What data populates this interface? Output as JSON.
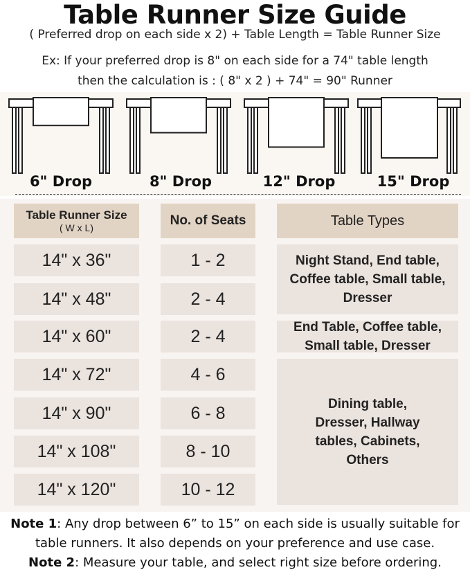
{
  "title": "Table Runner Size Guide",
  "formula": "( Preferred drop on each side x 2) + Table Length = Table Runner Size",
  "example_line1": "Ex: If your preferred drop is 8\" on each side for a 74\" table length",
  "example_line2": "then the calculation is : ( 8\" x 2 ) + 74\" = 90\" Runner",
  "drops": [
    {
      "label": "6\" Drop",
      "inches": 6
    },
    {
      "label": "8\" Drop",
      "inches": 8
    },
    {
      "label": "12\" Drop",
      "inches": 12
    },
    {
      "label": "15\" Drop",
      "inches": 15
    }
  ],
  "table": {
    "headers": {
      "size": "Table Runner Size",
      "size_sub": "( W x L)",
      "seats": "No. of Seats",
      "types": "Table Types"
    },
    "rows": [
      {
        "size": "14\" x 36\"",
        "seats": "1 - 2"
      },
      {
        "size": "14\" x 48\"",
        "seats": "2 - 4"
      },
      {
        "size": "14\" x 60\"",
        "seats": "2 - 4"
      },
      {
        "size": "14\" x 72\"",
        "seats": "4 - 6"
      },
      {
        "size": "14\" x 90\"",
        "seats": "6 - 8"
      },
      {
        "size": "14\" x 108\"",
        "seats": "8 - 10"
      },
      {
        "size": "14\" x 120\"",
        "seats": "10 - 12"
      }
    ],
    "types": [
      "Night Stand, End table, Coffee table, Small table, Dresser",
      "End Table, Coffee table, Small table, Dresser",
      "Dining table, Dresser, Hallway tables, Cabinets, Others"
    ]
  },
  "notes": {
    "note1_label": "Note 1",
    "note1_text": ": Any drop between 6” to 15” on each side is usually suitable for",
    "note1_text2": "table runners. It also depends on your preference and use case.",
    "note2_label": "Note 2",
    "note2_text": ": Measure your table, and select right size before ordering."
  },
  "colors": {
    "header_cell": "#e2d4c4",
    "body_cell": "#ebe3de",
    "background": "#f8f4f1"
  }
}
